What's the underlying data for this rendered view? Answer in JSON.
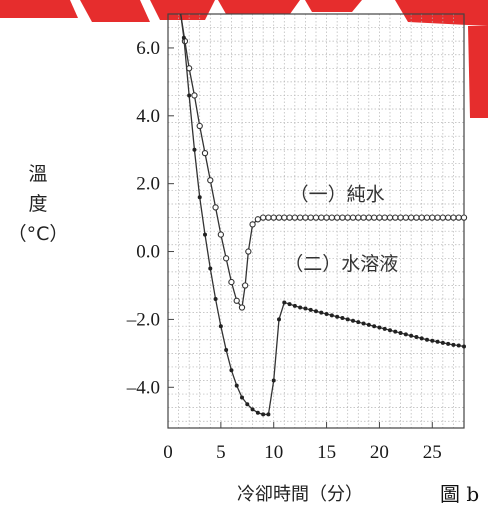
{
  "chart_data": {
    "type": "line",
    "ylabel": "溫\n度\n（°C）",
    "xlabel": "冷卻時間（分）",
    "figure_label": "圖 b",
    "xlim": [
      0,
      28
    ],
    "ylim": [
      -5.2,
      7.0
    ],
    "x_ticks": [
      0,
      5,
      10,
      15,
      20,
      25
    ],
    "x_tick_labels": [
      "0",
      "5",
      "10",
      "15",
      "20",
      "25"
    ],
    "y_ticks": [
      6.0,
      4.0,
      2.0,
      0.0,
      -2.0,
      -4.0
    ],
    "y_tick_labels": [
      "6.0",
      "4.0",
      "2.0",
      "0.0",
      "–2.0",
      "–4.0"
    ],
    "grid": true,
    "series": [
      {
        "name": "（一）純水",
        "marker": "open-circle",
        "points": [
          [
            1.2,
            7.0
          ],
          [
            1.6,
            6.2
          ],
          [
            2.0,
            5.4
          ],
          [
            2.5,
            4.6
          ],
          [
            3.0,
            3.7
          ],
          [
            3.5,
            2.9
          ],
          [
            4.0,
            2.1
          ],
          [
            4.5,
            1.3
          ],
          [
            5.0,
            0.5
          ],
          [
            5.5,
            -0.2
          ],
          [
            6.0,
            -0.9
          ],
          [
            6.5,
            -1.45
          ],
          [
            7.0,
            -1.65
          ],
          [
            7.3,
            -1.0
          ],
          [
            7.6,
            0.0
          ],
          [
            8.0,
            0.8
          ],
          [
            8.5,
            0.95
          ],
          [
            9.0,
            1.0
          ],
          [
            9.5,
            1.0
          ],
          [
            10,
            1.0
          ],
          [
            10.5,
            1.0
          ],
          [
            11,
            1.0
          ],
          [
            11.5,
            1.0
          ],
          [
            12,
            1.0
          ],
          [
            12.5,
            1.0
          ],
          [
            13,
            1.0
          ],
          [
            13.5,
            1.0
          ],
          [
            14,
            1.0
          ],
          [
            14.5,
            1.0
          ],
          [
            15,
            1.0
          ],
          [
            15.5,
            1.0
          ],
          [
            16,
            1.0
          ],
          [
            16.5,
            1.0
          ],
          [
            17,
            1.0
          ],
          [
            17.5,
            1.0
          ],
          [
            18,
            1.0
          ],
          [
            18.5,
            1.0
          ],
          [
            19,
            1.0
          ],
          [
            19.5,
            1.0
          ],
          [
            20,
            1.0
          ],
          [
            20.5,
            1.0
          ],
          [
            21,
            1.0
          ],
          [
            21.5,
            1.0
          ],
          [
            22,
            1.0
          ],
          [
            22.5,
            1.0
          ],
          [
            23,
            1.0
          ],
          [
            23.5,
            1.0
          ],
          [
            24,
            1.0
          ],
          [
            24.5,
            1.0
          ],
          [
            25,
            1.0
          ],
          [
            25.5,
            1.0
          ],
          [
            26,
            1.0
          ],
          [
            26.5,
            1.0
          ],
          [
            27,
            1.0
          ],
          [
            27.5,
            1.0
          ],
          [
            28,
            1.0
          ]
        ]
      },
      {
        "name": "（二）水溶液",
        "marker": "filled-dot",
        "points": [
          [
            1.2,
            7.0
          ],
          [
            1.5,
            6.3
          ],
          [
            2.0,
            4.6
          ],
          [
            2.5,
            3.0
          ],
          [
            3.0,
            1.6
          ],
          [
            3.5,
            0.5
          ],
          [
            4.0,
            -0.5
          ],
          [
            4.5,
            -1.4
          ],
          [
            5.0,
            -2.2
          ],
          [
            5.5,
            -2.9
          ],
          [
            6.0,
            -3.5
          ],
          [
            6.5,
            -3.95
          ],
          [
            7.0,
            -4.3
          ],
          [
            7.5,
            -4.5
          ],
          [
            8.0,
            -4.65
          ],
          [
            8.5,
            -4.75
          ],
          [
            9.0,
            -4.8
          ],
          [
            9.5,
            -4.8
          ],
          [
            10.0,
            -3.8
          ],
          [
            10.5,
            -2.0
          ],
          [
            11.0,
            -1.5
          ],
          [
            11.5,
            -1.55
          ],
          [
            12.0,
            -1.6
          ],
          [
            12.5,
            -1.65
          ],
          [
            13.0,
            -1.68
          ],
          [
            13.5,
            -1.72
          ],
          [
            14.0,
            -1.76
          ],
          [
            14.5,
            -1.8
          ],
          [
            15.0,
            -1.84
          ],
          [
            15.5,
            -1.88
          ],
          [
            16.0,
            -1.92
          ],
          [
            16.5,
            -1.96
          ],
          [
            17.0,
            -2.0
          ],
          [
            17.5,
            -2.04
          ],
          [
            18.0,
            -2.08
          ],
          [
            18.5,
            -2.12
          ],
          [
            19.0,
            -2.16
          ],
          [
            19.5,
            -2.2
          ],
          [
            20.0,
            -2.24
          ],
          [
            20.5,
            -2.28
          ],
          [
            21.0,
            -2.32
          ],
          [
            21.5,
            -2.36
          ],
          [
            22.0,
            -2.4
          ],
          [
            22.5,
            -2.44
          ],
          [
            23.0,
            -2.48
          ],
          [
            23.5,
            -2.52
          ],
          [
            24.0,
            -2.56
          ],
          [
            24.5,
            -2.6
          ],
          [
            25.0,
            -2.63
          ],
          [
            25.5,
            -2.66
          ],
          [
            26.0,
            -2.69
          ],
          [
            26.5,
            -2.72
          ],
          [
            27.0,
            -2.75
          ],
          [
            27.5,
            -2.77
          ],
          [
            28.0,
            -2.8
          ]
        ]
      }
    ],
    "annotations": [
      {
        "text": "（一）純水",
        "x": 11.5,
        "y": 1.5
      },
      {
        "text": "（二）水溶液",
        "x": 11.0,
        "y": -0.55
      }
    ]
  }
}
